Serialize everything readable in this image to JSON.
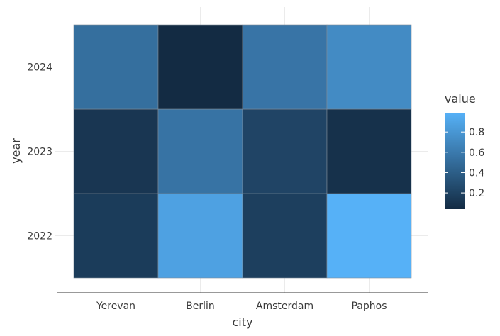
{
  "chart_data": {
    "type": "heatmap",
    "xlabel": "city",
    "ylabel": "year",
    "x_categories": [
      "Yerevan",
      "Berlin",
      "Amsterdam",
      "Paphos"
    ],
    "y_categories": [
      "2022",
      "2023",
      "2024"
    ],
    "cells": [
      {
        "x": "Yerevan",
        "y": "2022",
        "value": 0.16
      },
      {
        "x": "Berlin",
        "y": "2022",
        "value": 0.88
      },
      {
        "x": "Amsterdam",
        "y": "2022",
        "value": 0.18
      },
      {
        "x": "Paphos",
        "y": "2022",
        "value": 0.99
      },
      {
        "x": "Yerevan",
        "y": "2023",
        "value": 0.12
      },
      {
        "x": "Berlin",
        "y": "2023",
        "value": 0.55
      },
      {
        "x": "Amsterdam",
        "y": "2023",
        "value": 0.22
      },
      {
        "x": "Paphos",
        "y": "2023",
        "value": 0.08
      },
      {
        "x": "Yerevan",
        "y": "2024",
        "value": 0.52
      },
      {
        "x": "Berlin",
        "y": "2024",
        "value": 0.04
      },
      {
        "x": "Amsterdam",
        "y": "2024",
        "value": 0.56
      },
      {
        "x": "Paphos",
        "y": "2024",
        "value": 0.72
      }
    ],
    "legend": {
      "title": "value",
      "position": "right",
      "ticks": [
        0.2,
        0.4,
        0.6,
        0.8
      ],
      "tick_labels": [
        "0.2",
        "0.4",
        "0.6",
        "0.8"
      ],
      "range": [
        0.04,
        0.99
      ],
      "color_low": "#132B43",
      "color_high": "#56B1F7"
    },
    "grid": true
  }
}
